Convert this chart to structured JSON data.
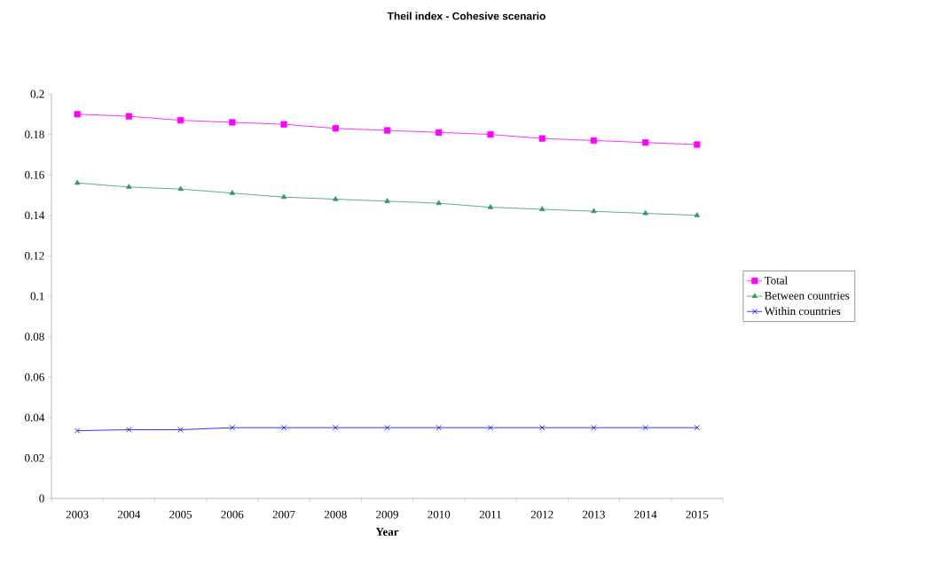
{
  "chart_data": {
    "type": "line",
    "title": "Theil index - Cohesive scenario",
    "xlabel": "Year",
    "categories": [
      "2003",
      "2004",
      "2005",
      "2006",
      "2007",
      "2008",
      "2009",
      "2010",
      "2011",
      "2012",
      "2013",
      "2014",
      "2015"
    ],
    "series": [
      {
        "name": "Total",
        "color": "#ff00ff",
        "marker": "square",
        "values": [
          0.19,
          0.189,
          0.187,
          0.186,
          0.185,
          0.183,
          0.182,
          0.181,
          0.18,
          0.178,
          0.177,
          0.176,
          0.175
        ]
      },
      {
        "name": "Between countries",
        "color": "#339966",
        "marker": "triangle",
        "values": [
          0.156,
          0.154,
          0.153,
          0.151,
          0.149,
          0.148,
          0.147,
          0.146,
          0.144,
          0.143,
          0.142,
          0.141,
          0.14
        ]
      },
      {
        "name": "Within countries",
        "color": "#0000ff",
        "marker": "cross",
        "values": [
          0.0335,
          0.034,
          0.034,
          0.035,
          0.035,
          0.035,
          0.035,
          0.035,
          0.035,
          0.035,
          0.035,
          0.035,
          0.035
        ]
      }
    ],
    "ylim": [
      0,
      0.2
    ],
    "yticks": [
      0,
      0.02,
      0.04,
      0.06,
      0.08,
      0.1,
      0.12,
      0.14,
      0.16,
      0.18,
      0.2
    ],
    "grid": false,
    "legend": "right",
    "line_style": "solid"
  }
}
